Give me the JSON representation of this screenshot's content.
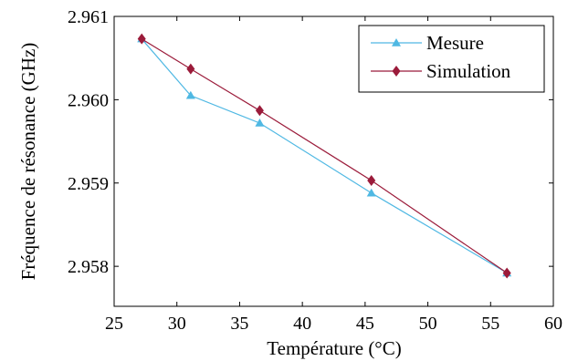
{
  "chart_data": {
    "type": "line",
    "title": "",
    "xlabel": "Température (°C)",
    "ylabel": "Fréquence de résonance (GHz)",
    "xlim": [
      25,
      60
    ],
    "ylim": [
      2.95752,
      2.961
    ],
    "xticks": [
      "25",
      "30",
      "35",
      "40",
      "45",
      "50",
      "55",
      "60"
    ],
    "yticks": [
      "2.958",
      "2.959",
      "2.960",
      "2.961"
    ],
    "grid": false,
    "legend_position": "top-right",
    "series": [
      {
        "name": "Mesure",
        "color": "#4fb8e3",
        "marker": "triangle",
        "x": [
          27.2,
          31.1,
          36.6,
          45.5,
          56.3
        ],
        "y": [
          2.96073,
          2.96005,
          2.95972,
          2.95888,
          2.95792
        ]
      },
      {
        "name": "Simulation",
        "color": "#9b1b3a",
        "marker": "diamond",
        "x": [
          27.2,
          31.1,
          36.6,
          45.5,
          56.3
        ],
        "y": [
          2.96073,
          2.96037,
          2.95987,
          2.95903,
          2.95792
        ]
      }
    ]
  }
}
